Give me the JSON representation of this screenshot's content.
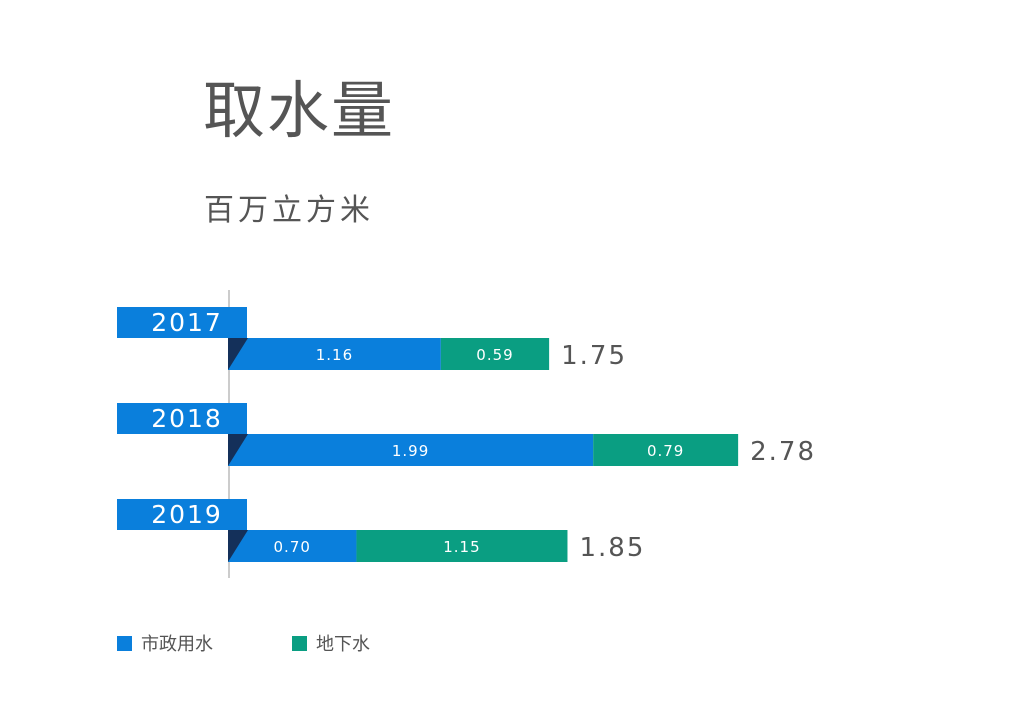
{
  "chart_data": {
    "type": "bar",
    "orientation": "horizontal",
    "stacked": true,
    "title": "取水量",
    "subtitle": "百万立方米",
    "categories": [
      "2017",
      "2018",
      "2019"
    ],
    "series": [
      {
        "name": "市政用水",
        "values": [
          1.16,
          1.99,
          0.7
        ],
        "color": "#0a7fdc"
      },
      {
        "name": "地下水",
        "values": [
          0.59,
          0.79,
          1.15
        ],
        "color": "#0a9e82"
      }
    ],
    "totals": [
      1.75,
      2.78,
      1.85
    ],
    "data_labels": {
      "segments": [
        [
          "1.16",
          "0.59"
        ],
        [
          "1.99",
          "0.79"
        ],
        [
          "0.70",
          "1.15"
        ]
      ],
      "totals": [
        "1.75",
        "2.78",
        "1.85"
      ]
    },
    "accent_dark": "#14305a",
    "legend_position": "bottom-left",
    "grid": false
  }
}
